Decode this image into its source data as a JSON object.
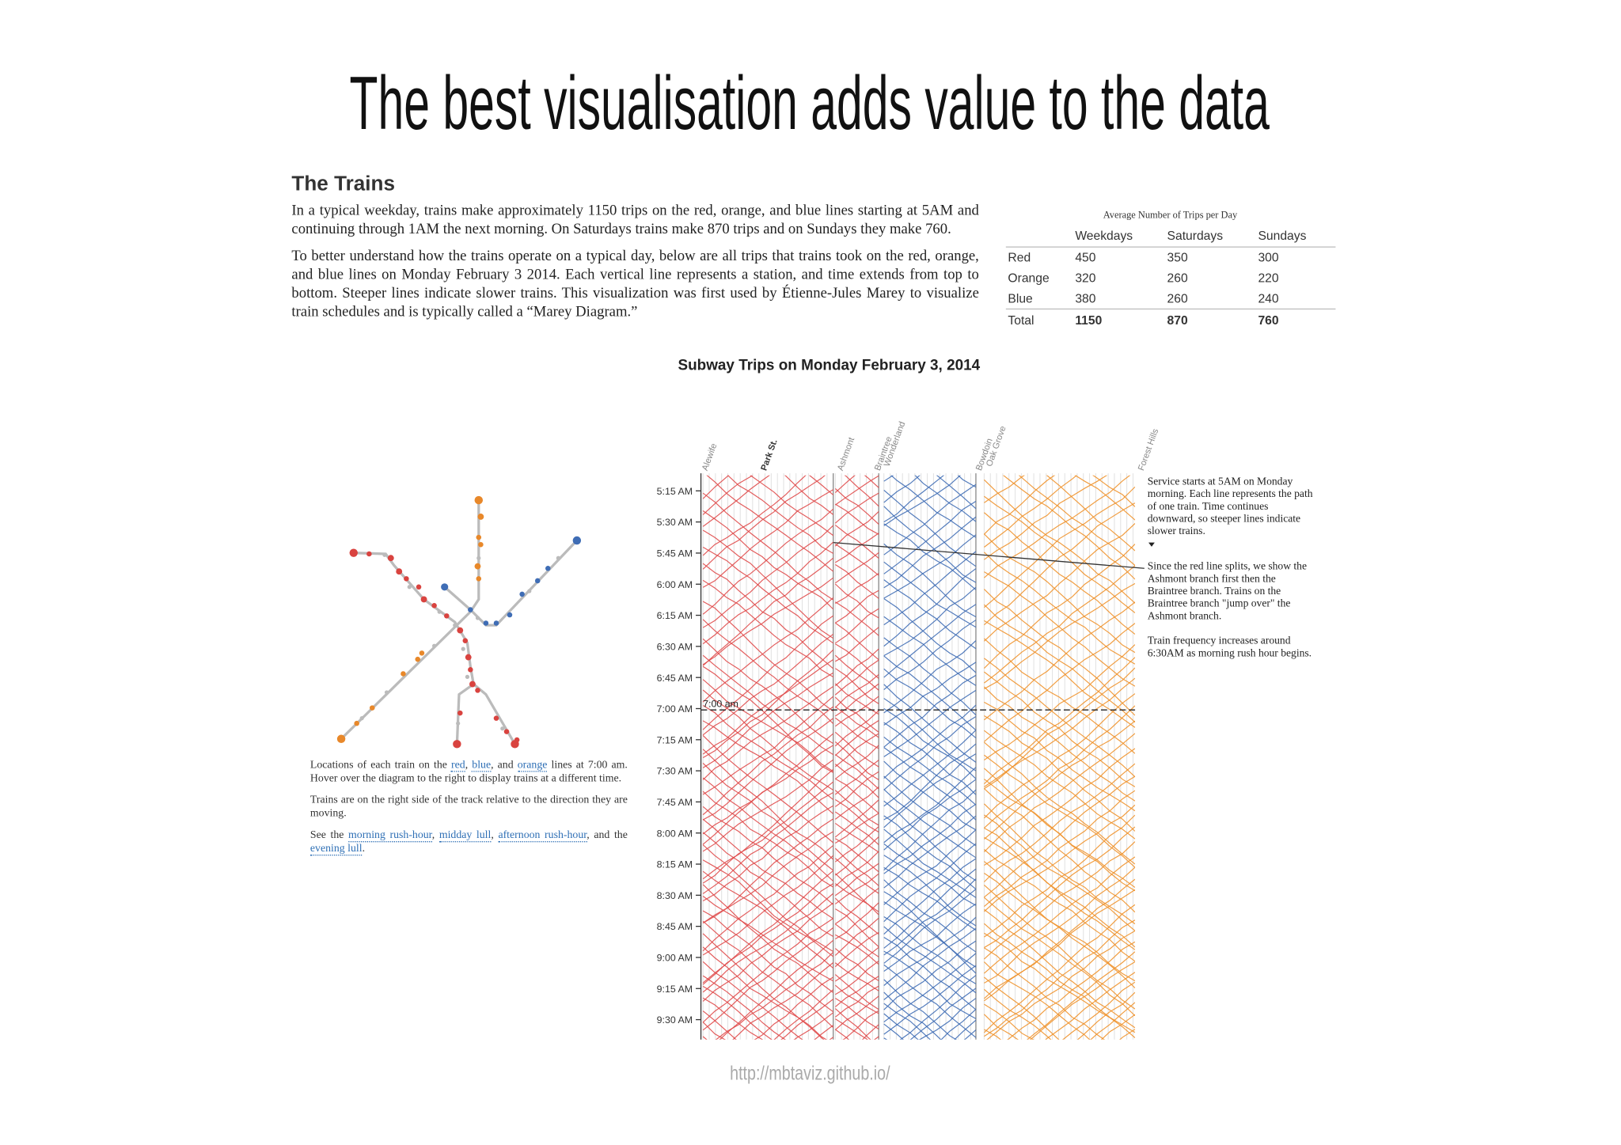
{
  "title": "The best visualisation adds value to the data",
  "article": {
    "heading": "The Trains",
    "paragraphs": [
      "In a typical weekday, trains make approximately 1150 trips on the red, orange, and blue lines starting at 5AM and continuing through 1AM the next morning. On Saturdays trains make 870 trips and on Sundays they make 760.",
      "To better understand how the trains operate on a typical day, below are all trips that trains took on the red, orange, and blue lines on Monday February 3 2014. Each vertical line represents a station, and time extends from top to bottom. Steeper lines indicate slower trains. This visualization was first used by Étienne-Jules Marey to visualize train schedules and is typically called a “Marey Diagram.”"
    ]
  },
  "table": {
    "title": "Average Number of Trips per Day",
    "columns": [
      "Weekdays",
      "Saturdays",
      "Sundays"
    ],
    "rows": [
      [
        "Red",
        450,
        350,
        300
      ],
      [
        "Orange",
        320,
        260,
        220
      ],
      [
        "Blue",
        380,
        260,
        240
      ]
    ],
    "total": [
      "Total",
      1150,
      870,
      760
    ]
  },
  "diagram": {
    "title": "Subway Trips on Monday February 3, 2014",
    "stations": [
      "Alewife",
      "Park St.",
      "Ashmont",
      "Braintree",
      "Wonderland",
      "Bowdoin",
      "Oak Grove",
      "Forest Hills"
    ],
    "times": [
      "5:15 AM",
      "5:30 AM",
      "5:45 AM",
      "6:00 AM",
      "6:15 AM",
      "6:30 AM",
      "6:45 AM",
      "7:00 AM",
      "7:15 AM",
      "7:30 AM",
      "7:45 AM",
      "8:00 AM",
      "8:15 AM",
      "8:30 AM",
      "8:45 AM",
      "9:00 AM",
      "9:15 AM",
      "9:30 AM"
    ],
    "now_label": "7:00 am",
    "notes": [
      "Service starts at 5AM on Monday morning. Each line represents the path of one train. Time continues downward, so steeper lines indicate slower trains.",
      "Since the red line splits, we show the Ashmont branch first then the Braintree branch. Trains on the Braintree branch \"jump over\" the Ashmont branch.",
      "Train frequency increases around 6:30AM as morning rush hour begins."
    ]
  },
  "map": {
    "caption": [
      [
        "Locations of each train on the ",
        "red",
        ", ",
        "blue",
        ", and ",
        "orange",
        " lines at 7:00 am. Hover over the diagram to the right to display trains at a different time."
      ],
      [
        "Trains are on the right side of the track relative to the direction they are moving."
      ],
      [
        "See the ",
        "morning rush-hour",
        ", ",
        "midday lull",
        ", ",
        "afternoon rush-hour",
        ", and the ",
        "evening lull",
        "."
      ]
    ]
  },
  "source": "http://mbtaviz.github.io/"
}
